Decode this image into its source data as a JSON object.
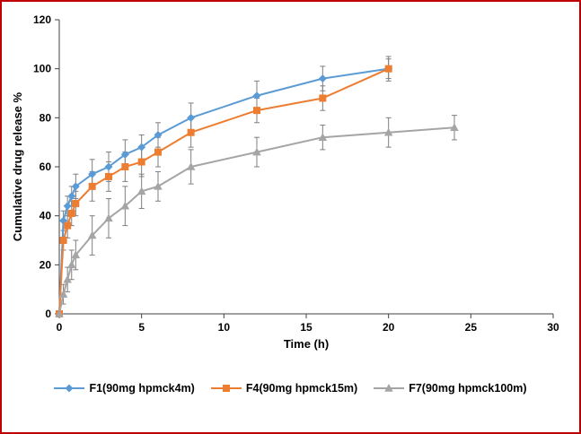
{
  "frame": {
    "border_color": "#C00000",
    "background": "#FFFFFF"
  },
  "chart_data": {
    "type": "line",
    "title": "",
    "xlabel": "Time (h)",
    "ylabel": "Cumulative drug release %",
    "xlim": [
      0,
      30
    ],
    "ylim": [
      0,
      120
    ],
    "xticks": [
      0,
      5,
      10,
      15,
      20,
      25,
      30
    ],
    "yticks": [
      0,
      20,
      40,
      60,
      80,
      100,
      120
    ],
    "grid": false,
    "legend_position": "bottom",
    "axis_color": "#404040",
    "tick_label_color": "#000000",
    "error_bars": true,
    "error_bar_color": "#7F7F7F",
    "series": [
      {
        "name": "F1(90mg hpmck4m)",
        "color": "#5B9BD5",
        "marker": "diamond",
        "x": [
          0,
          0.25,
          0.5,
          0.75,
          1,
          2,
          3,
          4,
          5,
          6,
          8,
          12,
          16,
          20
        ],
        "y": [
          0,
          38,
          44,
          48,
          52,
          57,
          60,
          65,
          68,
          73,
          80,
          89,
          96,
          100
        ],
        "yerr": [
          0,
          4,
          4,
          4,
          5,
          6,
          6,
          6,
          5,
          5,
          6,
          6,
          5,
          4
        ]
      },
      {
        "name": "F4(90mg hpmck15m)",
        "color": "#ED7D31",
        "marker": "square",
        "x": [
          0,
          0.25,
          0.5,
          0.75,
          1,
          2,
          3,
          4,
          5,
          6,
          8,
          12,
          16,
          20
        ],
        "y": [
          0,
          30,
          36,
          41,
          45,
          52,
          56,
          60,
          62,
          66,
          74,
          83,
          88,
          100
        ],
        "yerr": [
          0,
          4,
          5,
          5,
          5,
          6,
          6,
          6,
          6,
          6,
          6,
          5,
          5,
          5
        ]
      },
      {
        "name": "F7(90mg hpmck100m)",
        "color": "#A5A5A5",
        "marker": "triangle",
        "x": [
          0,
          0.25,
          0.5,
          0.75,
          1,
          2,
          3,
          4,
          5,
          6,
          8,
          12,
          16,
          20,
          24
        ],
        "y": [
          0,
          8,
          14,
          20,
          24,
          32,
          39,
          44,
          50,
          52,
          60,
          66,
          72,
          74,
          76
        ],
        "yerr": [
          0,
          4,
          5,
          6,
          6,
          8,
          8,
          8,
          7,
          6,
          7,
          6,
          5,
          6,
          5
        ]
      }
    ]
  }
}
